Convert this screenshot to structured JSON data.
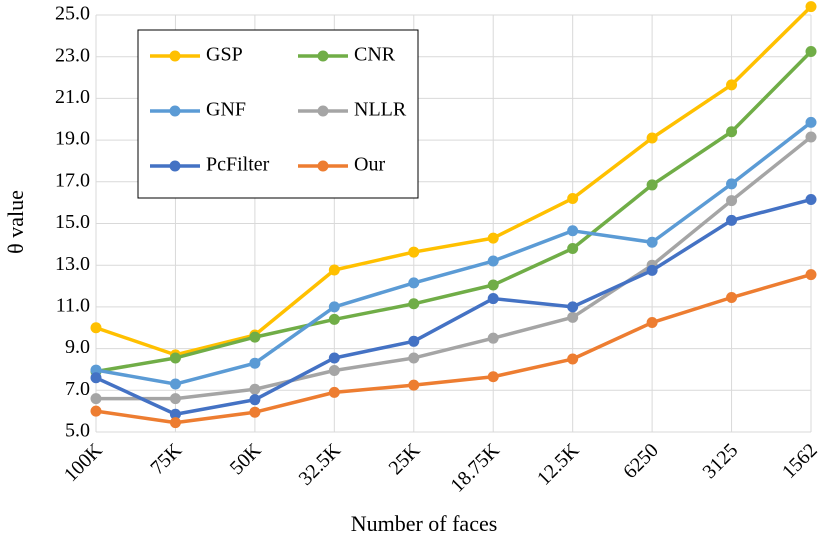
{
  "chart_data": {
    "type": "line",
    "x_label": "Number of faces",
    "y_label": "θ value",
    "categories": [
      "100K",
      "75K",
      "50K",
      "32.5K",
      "25K",
      "18.75K",
      "12.5K",
      "6250",
      "3125",
      "1562"
    ],
    "series": [
      {
        "name": "GSP",
        "color": "#FFC000",
        "values": [
          10.0,
          8.7,
          9.65,
          12.77,
          13.63,
          14.3,
          16.2,
          19.1,
          21.65,
          25.4
        ]
      },
      {
        "name": "CNR",
        "color": "#70AD47",
        "values": [
          7.9,
          8.55,
          9.55,
          10.4,
          11.15,
          12.05,
          13.8,
          16.85,
          19.4,
          23.25
        ]
      },
      {
        "name": "GNF",
        "color": "#5B9BD5",
        "values": [
          7.97,
          7.3,
          8.3,
          11.0,
          12.15,
          13.2,
          14.65,
          14.1,
          16.9,
          19.85
        ]
      },
      {
        "name": "NLLR",
        "color": "#A5A5A5",
        "values": [
          6.6,
          6.6,
          7.05,
          7.95,
          8.55,
          9.5,
          10.5,
          13.0,
          16.1,
          19.15
        ]
      },
      {
        "name": "PcFilter",
        "color": "#4472C4",
        "values": [
          7.6,
          5.85,
          6.55,
          8.55,
          9.35,
          11.4,
          11.0,
          12.75,
          15.15,
          16.15
        ]
      },
      {
        "name": "Our",
        "color": "#ED7D31",
        "values": [
          6.0,
          5.45,
          5.95,
          6.9,
          7.25,
          7.65,
          8.5,
          10.25,
          11.45,
          12.55
        ]
      }
    ],
    "ylim": [
      5,
      25
    ],
    "yticks": [
      {
        "value": 5,
        "label": "5.0"
      },
      {
        "value": 7,
        "label": "7.0"
      },
      {
        "value": 9,
        "label": "9.0"
      },
      {
        "value": 11,
        "label": "11.0"
      },
      {
        "value": 13,
        "label": "13.0"
      },
      {
        "value": 15,
        "label": "15.0"
      },
      {
        "value": 17,
        "label": "17.0"
      },
      {
        "value": 19,
        "label": "19.0"
      },
      {
        "value": 21,
        "label": "21.0"
      },
      {
        "value": 23,
        "label": "23.0"
      },
      {
        "value": 25,
        "label": "25.0"
      }
    ],
    "grid": true,
    "legend": "upper left"
  }
}
